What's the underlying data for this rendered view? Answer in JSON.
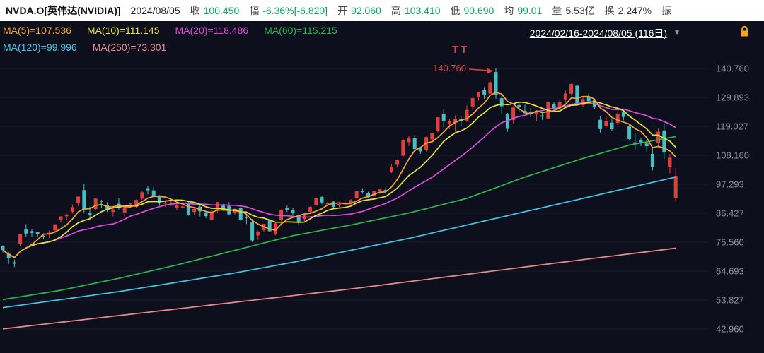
{
  "palette": {
    "header_bg": "#ffffff",
    "header_text": "#333333",
    "value_down": "#0ea65a",
    "value_neutral": "#333333",
    "chart_bg": "#0d101c",
    "lock_orange": "#f5a31a"
  },
  "header": {
    "symbol": "NVDA.O[英伟达(NVIDIA)]",
    "date": "2024/08/05",
    "fields": [
      {
        "key": "close",
        "label": "收",
        "value": "100.450",
        "tone": "down"
      },
      {
        "key": "change",
        "label": "幅",
        "value": "-6.36%[-6.820]",
        "tone": "down"
      },
      {
        "key": "open",
        "label": "开",
        "value": "92.060",
        "tone": "down"
      },
      {
        "key": "high",
        "label": "高",
        "value": "103.410",
        "tone": "down"
      },
      {
        "key": "low",
        "label": "低",
        "value": "90.690",
        "tone": "down"
      },
      {
        "key": "avg",
        "label": "均",
        "value": "99.01",
        "tone": "down"
      },
      {
        "key": "volume",
        "label": "量",
        "value": "5.53亿",
        "tone": "neutral"
      },
      {
        "key": "turnover",
        "label": "换",
        "value": "2.247%",
        "tone": "neutral"
      },
      {
        "key": "amplitude",
        "label": "振",
        "value": "",
        "tone": "neutral"
      }
    ]
  },
  "legend": {
    "row1": [
      {
        "text": "MA(5)=107.536",
        "color": "#f0a43c"
      },
      {
        "text": "MA(10)=111.145",
        "color": "#e7e04b"
      },
      {
        "text": "MA(20)=118.486",
        "color": "#dc4ddc"
      },
      {
        "text": "MA(60)=115.215",
        "color": "#2eb44d"
      }
    ],
    "row2": [
      {
        "text": "MA(120)=99.996",
        "color": "#45c6e6"
      },
      {
        "text": "MA(250)=73.301",
        "color": "#ec8b8b"
      }
    ]
  },
  "range_selector": {
    "text": "2024/02/16-2024/08/05 (116日)",
    "dropdown_icon": "▼"
  },
  "chart_data": {
    "type": "candlestick",
    "symbol": "NVDA.O",
    "period_label": "2024/02/16-2024/08/05 (116日)",
    "y_axis": {
      "labels": [
        140.76,
        129.893,
        119.027,
        108.16,
        97.293,
        86.427,
        75.56,
        64.693,
        53.827,
        42.96
      ]
    },
    "colors": {
      "up": "#e0403c",
      "down": "#46bfc4",
      "grid": "rgba(255,255,255,0.05)",
      "axis_text": "#8b909c"
    },
    "candles": [
      [
        74.0,
        74.4,
        71.7,
        72.61
      ],
      [
        71.2,
        71.9,
        67.4,
        69.45
      ],
      [
        68.0,
        69.0,
        66.2,
        67.47
      ],
      [
        75.0,
        78.6,
        74.2,
        78.55
      ],
      [
        80.3,
        82.3,
        77.5,
        78.8
      ],
      [
        79.7,
        80.6,
        77.6,
        79.04
      ],
      [
        79.4,
        79.5,
        77.4,
        78.7
      ],
      [
        78.0,
        78.9,
        76.6,
        77.66
      ],
      [
        79.0,
        79.9,
        77.1,
        79.11
      ],
      [
        80.0,
        82.3,
        79.5,
        82.28
      ],
      [
        84.1,
        85.3,
        83.0,
        85.21
      ],
      [
        85.3,
        86.1,
        83.9,
        85.96
      ],
      [
        86.9,
        89.7,
        86.3,
        88.7
      ],
      [
        90.1,
        92.7,
        89.1,
        92.67
      ],
      [
        95.1,
        97.4,
        86.5,
        87.57
      ],
      [
        86.4,
        88.8,
        84.1,
        85.78
      ],
      [
        88.0,
        92.2,
        87.6,
        91.91
      ],
      [
        91.0,
        91.5,
        88.5,
        90.88
      ],
      [
        89.5,
        90.6,
        86.9,
        87.94
      ],
      [
        86.9,
        88.8,
        85.2,
        87.84
      ],
      [
        90.0,
        92.2,
        87.8,
        88.44
      ],
      [
        86.7,
        89.5,
        85.0,
        89.39
      ],
      [
        89.8,
        90.4,
        88.3,
        90.37
      ],
      [
        88.8,
        91.6,
        88.4,
        91.43
      ],
      [
        91.9,
        94.6,
        91.5,
        94.27
      ],
      [
        95.8,
        96.7,
        93.5,
        95.0
      ],
      [
        95.0,
        96.3,
        92.5,
        92.56
      ],
      [
        93.1,
        93.2,
        89.3,
        90.25
      ],
      [
        90.0,
        91.3,
        89.0,
        90.36
      ],
      [
        90.3,
        92.2,
        89.2,
        90.36
      ],
      [
        88.4,
        90.1,
        87.6,
        89.45
      ],
      [
        88.5,
        90.7,
        88.4,
        88.96
      ],
      [
        90.3,
        90.6,
        85.5,
        85.9
      ],
      [
        86.9,
        88.3,
        85.9,
        88.01
      ],
      [
        88.9,
        89.4,
        85.2,
        87.13
      ],
      [
        86.7,
        87.4,
        84.6,
        85.35
      ],
      [
        83.9,
        87.4,
        83.6,
        87.04
      ],
      [
        87.5,
        90.7,
        86.5,
        90.62
      ],
      [
        89.3,
        89.9,
        87.3,
        88.19
      ],
      [
        89.1,
        90.6,
        85.9,
        86.0
      ],
      [
        86.4,
        88.1,
        86.0,
        87.4
      ],
      [
        88.3,
        88.7,
        83.6,
        84.04
      ],
      [
        84.9,
        86.2,
        82.4,
        84.67
      ],
      [
        83.1,
        84.3,
        75.6,
        76.2
      ],
      [
        78.1,
        79.9,
        76.4,
        79.5
      ],
      [
        80.1,
        82.5,
        79.4,
        82.4
      ],
      [
        83.9,
        84.1,
        79.3,
        79.65
      ],
      [
        78.6,
        83.0,
        78.1,
        82.64
      ],
      [
        83.9,
        87.9,
        83.4,
        87.74
      ],
      [
        88.3,
        89.3,
        86.9,
        87.76
      ],
      [
        87.5,
        88.5,
        85.9,
        86.4
      ],
      [
        85.5,
        86.1,
        81.9,
        83.04
      ],
      [
        84.2,
        86.0,
        83.5,
        85.82
      ],
      [
        87.0,
        89.0,
        86.5,
        88.79
      ],
      [
        89.6,
        92.2,
        89.1,
        92.13
      ],
      [
        92.5,
        92.9,
        89.8,
        90.51
      ],
      [
        89.8,
        91.1,
        89.4,
        90.4
      ],
      [
        90.8,
        91.0,
        88.4,
        88.75
      ],
      [
        89.5,
        90.4,
        88.6,
        89.87
      ],
      [
        90.2,
        91.4,
        89.3,
        90.36
      ],
      [
        90.4,
        91.7,
        89.6,
        91.35
      ],
      [
        92.0,
        94.9,
        91.7,
        94.65
      ],
      [
        94.8,
        95.8,
        93.7,
        94.36
      ],
      [
        94.0,
        94.5,
        92.2,
        92.48
      ],
      [
        93.0,
        94.9,
        92.5,
        94.78
      ],
      [
        94.6,
        95.8,
        93.7,
        95.39
      ],
      [
        95.2,
        96.2,
        93.8,
        94.95
      ],
      [
        102.0,
        104.9,
        101.5,
        103.8
      ],
      [
        104.6,
        106.6,
        103.6,
        106.47
      ],
      [
        108.0,
        114.9,
        107.6,
        113.9
      ],
      [
        113.1,
        115.5,
        111.6,
        114.83
      ],
      [
        114.6,
        115.8,
        110.2,
        110.5
      ],
      [
        110.9,
        111.4,
        108.7,
        109.63
      ],
      [
        110.2,
        115.2,
        109.6,
        115.0
      ],
      [
        114.1,
        116.6,
        112.5,
        116.44
      ],
      [
        117.3,
        122.5,
        116.8,
        122.44
      ],
      [
        123.7,
        125.6,
        118.7,
        120.99
      ],
      [
        119.9,
        121.7,
        118.0,
        120.89
      ],
      [
        120.4,
        123.1,
        117.0,
        121.79
      ],
      [
        121.8,
        122.9,
        119.3,
        120.91
      ],
      [
        121.2,
        126.9,
        120.7,
        125.2
      ],
      [
        126.5,
        129.8,
        125.1,
        129.61
      ],
      [
        129.9,
        132.0,
        128.7,
        131.88
      ],
      [
        132.6,
        133.7,
        129.3,
        130.98
      ],
      [
        131.3,
        136.3,
        130.7,
        135.58
      ],
      [
        139.4,
        140.76,
        129.4,
        130.78
      ],
      [
        129.6,
        130.9,
        123.9,
        126.57
      ],
      [
        123.7,
        124.1,
        117.0,
        118.11
      ],
      [
        121.4,
        126.5,
        120.1,
        126.09
      ],
      [
        127.0,
        128.1,
        124.3,
        126.4
      ],
      [
        124.9,
        127.1,
        123.6,
        123.99
      ],
      [
        124.4,
        125.9,
        122.5,
        123.54
      ],
      [
        123.5,
        124.8,
        121.0,
        124.3
      ],
      [
        123.1,
        124.2,
        121.4,
        122.67
      ],
      [
        122.0,
        128.4,
        121.8,
        128.28
      ],
      [
        127.4,
        128.1,
        124.6,
        125.83
      ],
      [
        126.3,
        128.8,
        125.7,
        128.2
      ],
      [
        129.2,
        132.4,
        127.8,
        131.38
      ],
      [
        131.3,
        135.1,
        130.6,
        134.91
      ],
      [
        134.3,
        134.7,
        126.9,
        127.4
      ],
      [
        127.0,
        130.3,
        126.3,
        129.24
      ],
      [
        130.1,
        131.4,
        127.3,
        128.44
      ],
      [
        128.9,
        129.5,
        125.4,
        126.36
      ],
      [
        121.5,
        122.9,
        116.6,
        117.99
      ],
      [
        119.2,
        123.0,
        118.3,
        121.09
      ],
      [
        120.4,
        121.6,
        117.4,
        117.93
      ],
      [
        120.3,
        124.3,
        119.5,
        123.54
      ],
      [
        124.3,
        124.9,
        121.3,
        122.59
      ],
      [
        119.1,
        119.8,
        113.7,
        114.25
      ],
      [
        113.0,
        116.6,
        110.3,
        112.28
      ],
      [
        113.9,
        114.7,
        111.6,
        113.06
      ],
      [
        112.6,
        113.9,
        109.6,
        111.59
      ],
      [
        108.7,
        111.0,
        102.5,
        103.73
      ],
      [
        112.9,
        118.3,
        110.9,
        117.02
      ],
      [
        117.5,
        120.2,
        106.8,
        109.21
      ],
      [
        103.8,
        108.6,
        101.4,
        107.27
      ],
      [
        92.06,
        103.41,
        90.69,
        100.45
      ]
    ],
    "ma_series": [
      {
        "name": "MA5",
        "period": 5,
        "color": "#f0a43c"
      },
      {
        "name": "MA10",
        "period": 10,
        "color": "#e7e04b"
      },
      {
        "name": "MA20",
        "period": 20,
        "color": "#dc4ddc"
      },
      {
        "name": "MA60",
        "color": "#2eb44d",
        "control_points": [
          [
            0,
            54
          ],
          [
            10,
            57.5
          ],
          [
            20,
            62
          ],
          [
            30,
            67
          ],
          [
            40,
            72.5
          ],
          [
            50,
            78
          ],
          [
            60,
            82
          ],
          [
            70,
            86.5
          ],
          [
            80,
            92
          ],
          [
            90,
            100
          ],
          [
            100,
            107
          ],
          [
            108,
            112
          ],
          [
            116,
            115.215
          ]
        ]
      },
      {
        "name": "MA120",
        "color": "#45c6e6",
        "control_points": [
          [
            0,
            51
          ],
          [
            10,
            54
          ],
          [
            20,
            57
          ],
          [
            30,
            60.5
          ],
          [
            40,
            64
          ],
          [
            50,
            68
          ],
          [
            60,
            72.5
          ],
          [
            70,
            77
          ],
          [
            80,
            82
          ],
          [
            90,
            87
          ],
          [
            100,
            92
          ],
          [
            108,
            96
          ],
          [
            116,
            99.996
          ]
        ]
      },
      {
        "name": "MA250",
        "color": "#ec8b8b",
        "control_points": [
          [
            0,
            43
          ],
          [
            20,
            48
          ],
          [
            40,
            53
          ],
          [
            60,
            58
          ],
          [
            80,
            63.5
          ],
          [
            100,
            69
          ],
          [
            116,
            73.301
          ]
        ]
      }
    ],
    "annotation": {
      "peak_index": 85,
      "peak_value": 140.76,
      "label": "140.760",
      "marker": "ТТ"
    }
  }
}
